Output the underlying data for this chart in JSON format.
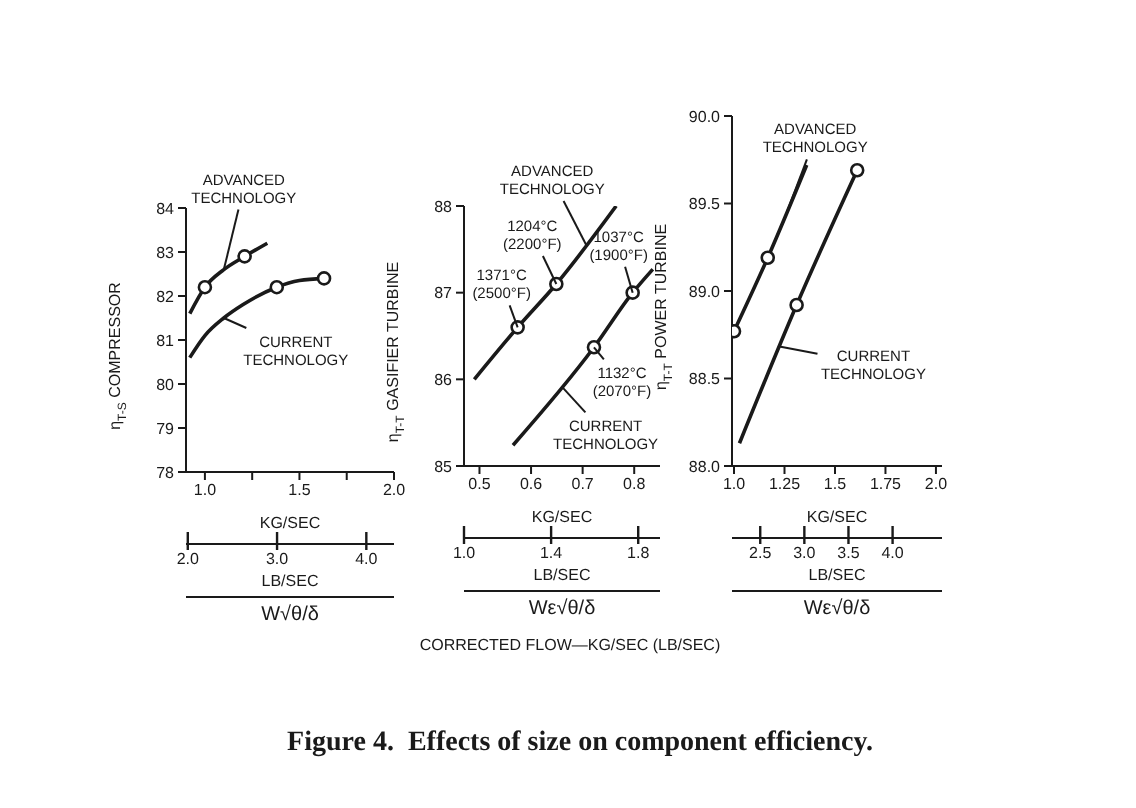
{
  "chart_data": [
    {
      "type": "line",
      "xlabel": "KG/SEC",
      "x2label": "LB/SEC",
      "ylabel": "η$_{T-S}$ COMPRESSOR",
      "xlim": [
        0.9,
        2.0
      ],
      "xticks": [
        {
          "value": 1,
          "label": "1.0"
        },
        {
          "value": 1.25,
          "label": null
        },
        1.5,
        {
          "value": 1.75,
          "label": null
        },
        {
          "value": 2,
          "label": "2.0"
        }
      ],
      "x2lim": [
        1.98,
        4.31
      ],
      "x2ticks": [
        {
          "value": 2,
          "label": "2.0"
        },
        {
          "value": 3,
          "label": "3.0"
        },
        {
          "value": 4,
          "label": "4.0"
        }
      ],
      "ylim": [
        78,
        84
      ],
      "yticks": [
        78,
        79,
        80,
        81,
        82,
        83,
        84
      ],
      "series": [
        {
          "name": "ADVANCED TECHNOLOGY",
          "type": "line",
          "marker": "none",
          "color": "#1a1a1a",
          "x": [
            0.92,
            1.0,
            1.1,
            1.21,
            1.33
          ],
          "values": [
            81.6,
            82.2,
            82.6,
            82.9,
            83.2
          ]
        },
        {
          "name": "CURRENT TECHNOLOGY",
          "type": "line",
          "marker": "none",
          "color": "#1a1a1a",
          "x": [
            0.92,
            1.0,
            1.1,
            1.2,
            1.38,
            1.5,
            1.63
          ],
          "values": [
            80.6,
            81.1,
            81.5,
            81.8,
            82.2,
            82.35,
            82.4
          ]
        },
        {
          "type": "scatter",
          "marker": "circle",
          "color": "#1a1a1a",
          "x": [
            1.0,
            1.21
          ],
          "values": [
            82.2,
            82.9
          ]
        },
        {
          "type": "scatter",
          "marker": "circle",
          "color": "#1a1a1a",
          "x": [
            1.38,
            1.63
          ],
          "values": [
            82.2,
            82.4
          ]
        }
      ],
      "annotations": [
        "W√θ/δ"
      ]
    },
    {
      "type": "line",
      "xlabel": "KG/SEC",
      "x2label": "LB/SEC",
      "ylabel": "η$_{T-T}$ GASIFIER TURBINE",
      "xlim": [
        0.47,
        0.85
      ],
      "xticks": [
        0.5,
        0.6,
        0.7,
        0.8
      ],
      "x2lim": [
        1.0,
        1.9
      ],
      "x2ticks": [
        {
          "value": 1,
          "label": "1.0"
        },
        1.4,
        1.8
      ],
      "ylim": [
        85,
        88
      ],
      "yticks": [
        85,
        86,
        87,
        88
      ],
      "series": [
        {
          "name": "ADVANCED TECHNOLOGY",
          "type": "line",
          "marker": "none",
          "color": "#1a1a1a",
          "x": [
            0.49,
            0.574,
            0.649,
            0.765
          ],
          "values": [
            86.0,
            86.6,
            87.1,
            88.0
          ]
        },
        {
          "name": "CURRENT TECHNOLOGY",
          "type": "line",
          "marker": "none",
          "color": "#1a1a1a",
          "x": [
            0.565,
            0.722,
            0.797,
            0.836
          ],
          "values": [
            85.24,
            86.37,
            87.0,
            87.27
          ]
        },
        {
          "type": "scatter",
          "marker": "circle",
          "color": "#1a1a1a",
          "x": [
            0.574,
            0.649
          ],
          "values": [
            86.6,
            87.1
          ]
        },
        {
          "type": "scatter",
          "marker": "circle",
          "color": "#1a1a1a",
          "x": [
            0.722,
            0.797
          ],
          "values": [
            86.37,
            87.0
          ]
        }
      ],
      "annotations": [
        "Wε√θ/δ",
        "CORRECTED FLOW—KG/SEC (LB/SEC)",
        "Figure 4.  Effects of size on component efficiency.",
        {
          "text": "1371°C (2500°F)",
          "x": 0.574,
          "y": 86.6
        },
        {
          "text": "1204°C (2200°F)",
          "x": 0.649,
          "y": 87.1
        },
        {
          "text": "1037°C (1900°F)",
          "x": 0.797,
          "y": 87.0
        },
        {
          "text": "1132°C (2070°F)",
          "x": 0.722,
          "y": 86.37
        }
      ]
    },
    {
      "type": "line",
      "xlabel": "KG/SEC",
      "x2label": "LB/SEC",
      "ylabel": "η$_{T-T}$ POWER TURBINE",
      "xlim": [
        0.99,
        2.03
      ],
      "xticks": [
        {
          "value": 1,
          "label": "1.0"
        },
        1.25,
        1.5,
        1.75,
        {
          "value": 2,
          "label": "2.0"
        }
      ],
      "x2lim": [
        2.18,
        4.56
      ],
      "x2ticks": [
        2.5,
        {
          "value": 3,
          "label": "3.0"
        },
        3.5,
        {
          "value": 4,
          "label": "4.0"
        }
      ],
      "ylim": [
        88,
        90
      ],
      "yticks": [
        {
          "value": 88,
          "label": "88.0"
        },
        88.5,
        {
          "value": 89,
          "label": "89.0"
        },
        89.5,
        {
          "value": 90,
          "label": "90.0"
        }
      ],
      "series": [
        {
          "name": "ADVANCED TECHNOLOGY",
          "type": "line",
          "marker": "none",
          "color": "#1a1a1a",
          "x": [
            1.0,
            1.167,
            1.36
          ],
          "values": [
            88.77,
            89.19,
            89.72
          ]
        },
        {
          "name": "CURRENT TECHNOLOGY",
          "type": "line",
          "marker": "none",
          "color": "#1a1a1a",
          "x": [
            1.027,
            1.31,
            1.61
          ],
          "values": [
            88.13,
            88.92,
            89.69
          ]
        },
        {
          "type": "scatter",
          "marker": "circle",
          "color": "#1a1a1a",
          "x": [
            1.0,
            1.167
          ],
          "values": [
            88.77,
            89.19
          ]
        },
        {
          "type": "scatter",
          "marker": "circle",
          "color": "#1a1a1a",
          "x": [
            1.31,
            1.61
          ],
          "values": [
            88.92,
            89.69
          ]
        }
      ],
      "annotations": [
        "Wε√θ/δ"
      ]
    }
  ]
}
